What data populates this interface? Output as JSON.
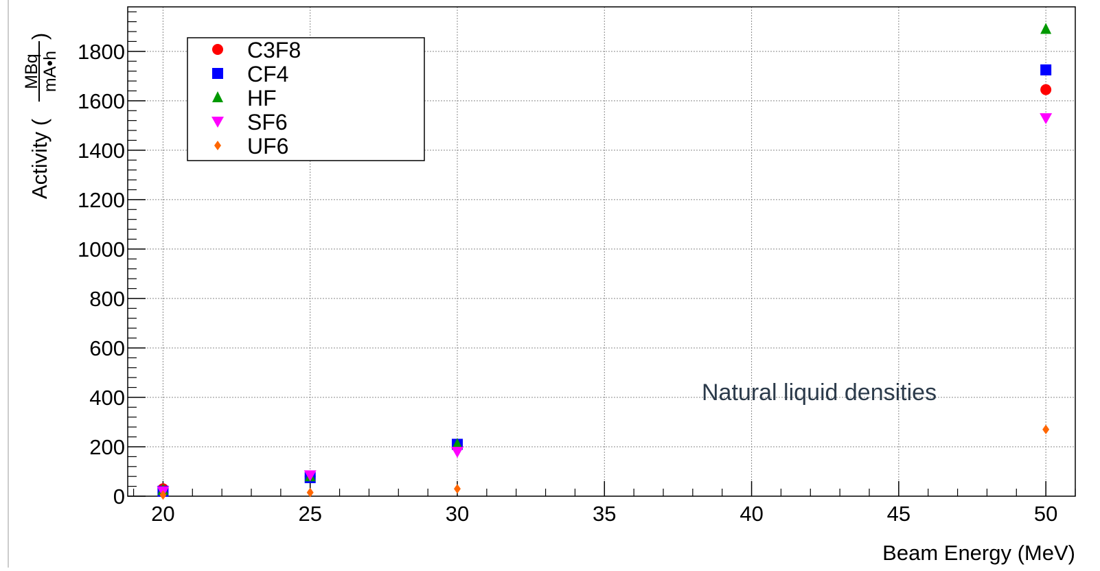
{
  "chart_data": {
    "type": "scatter",
    "title": "",
    "xlabel": "Beam Energy (MeV)",
    "ylabel": {
      "prefix": "Activity (",
      "numerator": "MBq",
      "denominator": "mA•h",
      "suffix": ")"
    },
    "xlim": [
      18.8,
      51.0
    ],
    "ylim": [
      0,
      1980
    ],
    "x_ticks": [
      20,
      25,
      30,
      35,
      40,
      45,
      50
    ],
    "y_ticks": [
      0,
      200,
      400,
      600,
      800,
      1000,
      1200,
      1400,
      1600,
      1800
    ],
    "grid": true,
    "legend_position": "top-left",
    "annotation": "Natural liquid densities",
    "series": [
      {
        "name": "C3F8",
        "marker": "circle",
        "color": "#ff0000",
        "x": [
          20,
          25,
          30,
          50
        ],
        "y": [
          30,
          80,
          200,
          1645
        ]
      },
      {
        "name": "CF4",
        "marker": "square",
        "color": "#0000ff",
        "x": [
          20,
          25,
          30,
          50
        ],
        "y": [
          20,
          75,
          210,
          1725
        ]
      },
      {
        "name": "HF",
        "marker": "triangle-up",
        "color": "#009900",
        "x": [
          20,
          25,
          30,
          50
        ],
        "y": [
          25,
          80,
          210,
          1890
        ]
      },
      {
        "name": "SF6",
        "marker": "triangle-down",
        "color": "#ff00ff",
        "x": [
          20,
          25,
          30,
          50
        ],
        "y": [
          20,
          85,
          180,
          1530
        ]
      },
      {
        "name": "UF6",
        "marker": "diamond",
        "color": "#ff6600",
        "x": [
          20,
          25,
          30,
          50
        ],
        "y": [
          5,
          15,
          30,
          270
        ]
      }
    ]
  }
}
